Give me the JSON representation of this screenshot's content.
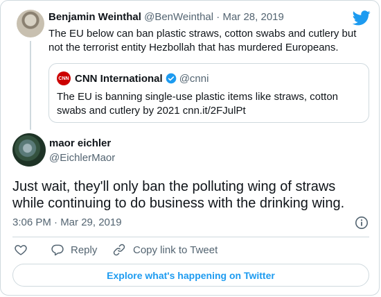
{
  "quoted_tweet": {
    "author_name": "Benjamin Weinthal",
    "author_handle": "@BenWeinthal",
    "separator": "·",
    "date": "Mar 28, 2019",
    "text": "The EU below can ban plastic straws, cotton swabs and cutlery but not the terrorist entity Hezbollah that has murdered Europeans."
  },
  "embedded_tweet": {
    "logo_text": "CNN",
    "author_name": "CNN International",
    "author_handle": "@cnni",
    "text": "The EU is banning single-use plastic items like straws, cotton swabs and cutlery by 2021 cnn.it/2FJulPt"
  },
  "reply": {
    "author_name": "maor eichler",
    "author_handle": "@EichlerMaor",
    "text": "Just wait, they'll only ban the polluting wing of straws while continuing to do business with the drinking wing.",
    "timestamp": "3:06 PM · Mar 29, 2019"
  },
  "actions": {
    "reply_label": "Reply",
    "copy_label": "Copy link to Tweet"
  },
  "explore_label": "Explore what's happening on Twitter",
  "colors": {
    "brand": "#1d9bf0",
    "text": "#0f1419",
    "secondary": "#536471",
    "border": "#cfd9de",
    "cnn_red": "#cc0000"
  }
}
